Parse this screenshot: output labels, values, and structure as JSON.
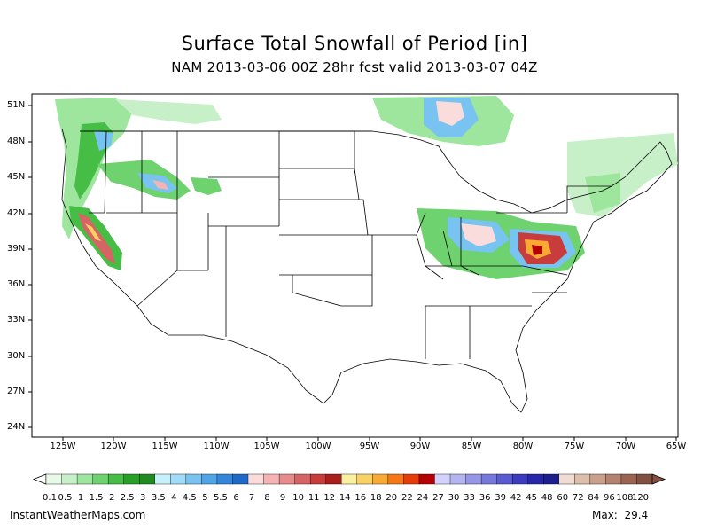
{
  "header": {
    "title": "Surface Total Snowfall of Period [in]",
    "subtitle": "NAM 2013-03-06 00Z 28hr fcst valid 2013-03-07 04Z"
  },
  "map": {
    "lat_labels": [
      "51N",
      "48N",
      "45N",
      "42N",
      "39N",
      "36N",
      "33N",
      "30N",
      "27N",
      "24N"
    ],
    "lon_labels": [
      "125W",
      "120W",
      "115W",
      "110W",
      "105W",
      "100W",
      "95W",
      "90W",
      "85W",
      "80W",
      "75W",
      "70W",
      "65W"
    ],
    "projection": "lat-lon",
    "lat_range": [
      23,
      52
    ],
    "lon_range": [
      -128,
      -65
    ]
  },
  "colorbar": {
    "labels": [
      "0.1",
      "0.5",
      "1",
      "1.5",
      "2",
      "2.5",
      "3",
      "3.5",
      "4",
      "4.5",
      "5",
      "5.5",
      "6",
      "7",
      "8",
      "9",
      "10",
      "11",
      "12",
      "14",
      "16",
      "18",
      "20",
      "22",
      "24",
      "27",
      "30",
      "33",
      "36",
      "39",
      "42",
      "45",
      "48",
      "60",
      "72",
      "84",
      "96",
      "108",
      "120"
    ],
    "colors": [
      "#e6fae6",
      "#c8f0c8",
      "#9ee69e",
      "#6ed26e",
      "#46be46",
      "#28a028",
      "#1e8c1e",
      "#c8f0fa",
      "#a0dcf5",
      "#78c3f0",
      "#50a5e6",
      "#3287dc",
      "#1e69c8",
      "#fadcdc",
      "#f5b4b4",
      "#e68c8c",
      "#d76464",
      "#c83c3c",
      "#aa1e1e",
      "#faf0a0",
      "#fad264",
      "#faaa32",
      "#f57814",
      "#e63c0a",
      "#b40000",
      "#d2d2fa",
      "#b4b4f0",
      "#9696e6",
      "#7878dc",
      "#5a5ad2",
      "#3c3cbe",
      "#2828aa",
      "#1e1e8c",
      "#f0dcd2",
      "#dcbeaa",
      "#c8a08c",
      "#b48270",
      "#9c6450",
      "#825040"
    ]
  },
  "footer": {
    "source": "InstantWeatherMaps.com",
    "max_label": "Max:",
    "max_value": "29.4"
  }
}
